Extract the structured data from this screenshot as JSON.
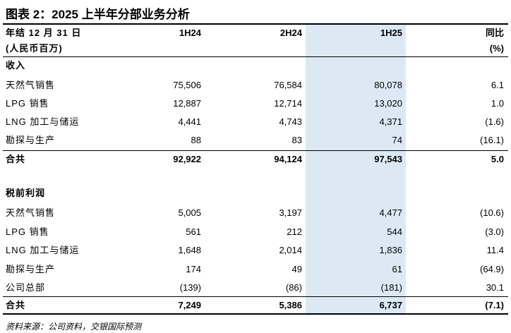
{
  "title": "图表 2：2025 上半年分部业务分析",
  "table": {
    "columns": [
      [
        "年结 12 月 31 日",
        "(人民币百万)"
      ],
      [
        "1H24"
      ],
      [
        "2H24"
      ],
      [
        "1H25"
      ],
      [
        "同比",
        "(%)"
      ]
    ],
    "sections": [
      {
        "title": "收入",
        "rows": [
          [
            "天然气销售",
            "75,506",
            "76,584",
            "80,078",
            "6.1"
          ],
          [
            "LPG 销售",
            "12,887",
            "12,714",
            "13,020",
            "1.0"
          ],
          [
            "LNG 加工与储运",
            "4,441",
            "4,743",
            "4,371",
            "(1.6)"
          ],
          [
            "勘探与生产",
            "88",
            "83",
            "74",
            "(16.1)"
          ]
        ],
        "total": [
          "合共",
          "92,922",
          "94,124",
          "97,543",
          "5.0"
        ]
      },
      {
        "title": "税前利润",
        "rows": [
          [
            "天然气销售",
            "5,005",
            "3,197",
            "4,477",
            "(10.6)"
          ],
          [
            "LPG 销售",
            "561",
            "212",
            "544",
            "(3.0)"
          ],
          [
            "LNG 加工与储运",
            "1,648",
            "2,014",
            "1,836",
            "11.4"
          ],
          [
            "勘探与生产",
            "174",
            "49",
            "61",
            "(64.9)"
          ],
          [
            "公司总部",
            "(139)",
            "(86)",
            "(181)",
            "30.1"
          ]
        ],
        "total": [
          "合共",
          "7,249",
          "5,386",
          "6,737",
          "(7.1)"
        ]
      }
    ]
  },
  "source": "资料来源：公司资料，交银国际预测"
}
